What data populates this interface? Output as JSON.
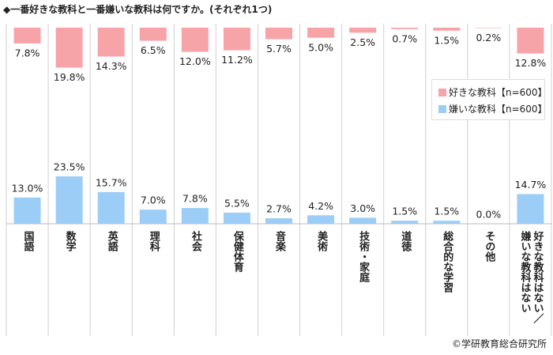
{
  "chart_data": {
    "type": "bar",
    "title": "◆一番好きな教科と一番嫌いな教科は何ですか。(それぞれ1つ)",
    "source": "©学研教育総合研究所",
    "categories": [
      "国語",
      "数学",
      "英語",
      "理科",
      "社会",
      "保健体育",
      "音楽",
      "美術",
      "技術・家庭",
      "道徳",
      "総合的な学習",
      "その他",
      "好きな教科はない／嫌いな教科はない"
    ],
    "series": [
      {
        "name": "好きな教科【n=600】",
        "color": "#f7a4a9",
        "values": [
          7.8,
          19.8,
          14.3,
          6.5,
          12.0,
          11.2,
          5.7,
          5.0,
          2.5,
          0.7,
          1.5,
          0.2,
          12.8
        ],
        "value_labels": [
          "7.8%",
          "19.8%",
          "14.3%",
          "6.5%",
          "12.0%",
          "11.2%",
          "5.7%",
          "5.0%",
          "2.5%",
          "0.7%",
          "1.5%",
          "0.2%",
          "12.8%"
        ]
      },
      {
        "name": "嫌いな教科【n=600】",
        "color": "#9ccdf6",
        "values": [
          13.0,
          23.5,
          15.7,
          7.0,
          7.8,
          5.5,
          2.7,
          4.2,
          3.0,
          1.5,
          1.5,
          0.0,
          14.7
        ],
        "value_labels": [
          "13.0%",
          "23.5%",
          "15.7%",
          "7.0%",
          "7.8%",
          "5.5%",
          "2.7%",
          "4.2%",
          "3.0%",
          "1.5%",
          "1.5%",
          "0.0%",
          "14.7%"
        ]
      }
    ]
  }
}
